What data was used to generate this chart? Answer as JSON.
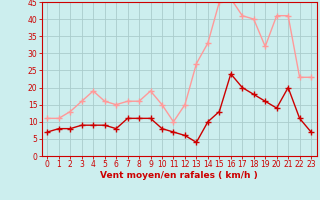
{
  "x": [
    0,
    1,
    2,
    3,
    4,
    5,
    6,
    7,
    8,
    9,
    10,
    11,
    12,
    13,
    14,
    15,
    16,
    17,
    18,
    19,
    20,
    21,
    22,
    23
  ],
  "y_moyen": [
    7,
    8,
    8,
    9,
    9,
    9,
    8,
    11,
    11,
    11,
    8,
    7,
    6,
    4,
    10,
    13,
    24,
    20,
    18,
    16,
    14,
    20,
    11,
    7
  ],
  "y_rafales": [
    11,
    11,
    13,
    16,
    19,
    16,
    15,
    16,
    16,
    19,
    15,
    10,
    15,
    27,
    33,
    45,
    46,
    41,
    40,
    32,
    41,
    41,
    23,
    23
  ],
  "xlabel": "Vent moyen/en rafales ( km/h )",
  "ylim": [
    0,
    45
  ],
  "xlim": [
    -0.5,
    23.5
  ],
  "yticks": [
    0,
    5,
    10,
    15,
    20,
    25,
    30,
    35,
    40,
    45
  ],
  "xticks": [
    0,
    1,
    2,
    3,
    4,
    5,
    6,
    7,
    8,
    9,
    10,
    11,
    12,
    13,
    14,
    15,
    16,
    17,
    18,
    19,
    20,
    21,
    22,
    23
  ],
  "color_moyen": "#cc0000",
  "color_rafales": "#ff9999",
  "bg_color": "#cceeee",
  "grid_color": "#aacccc",
  "spine_color": "#cc0000",
  "tick_color": "#cc0000",
  "xlabel_color": "#cc0000",
  "tick_fontsize": 5.5,
  "xlabel_fontsize": 6.5,
  "marker": "+",
  "linewidth": 1.0,
  "markersize": 4.0
}
